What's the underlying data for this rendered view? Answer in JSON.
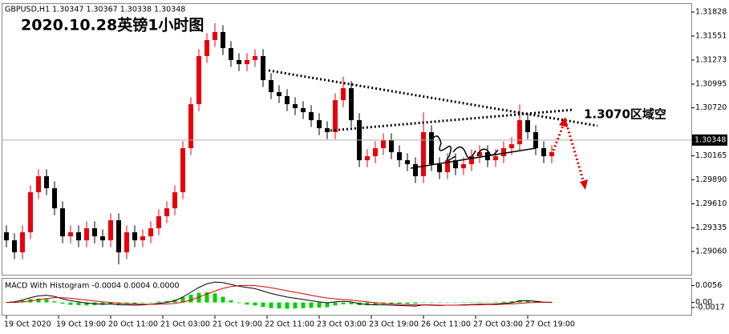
{
  "chart_data": [
    {
      "type": "candlestick",
      "header": "GBPUSD,H1  1.30347 1.30367 1.30338 1.30348",
      "title": "2020.10.28英镑1小时图",
      "annotation": "1.3070区域空",
      "up_color": "#e8000b",
      "down_color": "#000000",
      "open": [
        1.29282,
        1.29189,
        1.2905,
        1.29282,
        1.29745,
        1.2993,
        1.29791,
        1.29559,
        1.29235,
        1.29282,
        1.29189,
        1.29328,
        1.29235,
        1.29189,
        1.29421,
        1.2905,
        1.29282,
        1.29189,
        1.29235,
        1.29328,
        1.29467,
        1.29559,
        1.29745,
        1.30254,
        1.30763,
        1.31319,
        1.31504,
        1.31597,
        1.31411,
        1.31273,
        1.31226,
        1.31273,
        1.31319,
        1.31041,
        1.30902,
        1.30856,
        1.30763,
        1.30717,
        1.30671,
        1.30578,
        1.30485,
        1.30439,
        1.30809,
        1.30948,
        1.30578,
        1.30115,
        1.30161,
        1.30254,
        1.30347,
        1.30208,
        1.30115,
        1.30069,
        1.2993,
        1.30439,
        1.30069,
        1.29976,
        1.30115,
        1.30022,
        1.30069,
        1.30161,
        1.30208,
        1.30115,
        1.30161,
        1.30254,
        1.303,
        1.30578,
        1.30439,
        1.30254,
        1.30161
      ],
      "high": [
        1.29362,
        1.29269,
        1.29362,
        1.29825,
        1.3001,
        1.3001,
        1.29871,
        1.29639,
        1.29362,
        1.29362,
        1.29408,
        1.29408,
        1.29315,
        1.29501,
        1.29501,
        1.29362,
        1.29362,
        1.29315,
        1.29408,
        1.29547,
        1.29639,
        1.29825,
        1.30334,
        1.30843,
        1.31399,
        1.31584,
        1.317,
        1.31677,
        1.31491,
        1.31353,
        1.31353,
        1.31399,
        1.31399,
        1.31121,
        1.30982,
        1.30936,
        1.30843,
        1.30797,
        1.30751,
        1.30658,
        1.30565,
        1.30889,
        1.3108,
        1.31028,
        1.30658,
        1.30241,
        1.30334,
        1.30427,
        1.30427,
        1.30288,
        1.30195,
        1.30149,
        1.3067,
        1.30519,
        1.30149,
        1.30195,
        1.30195,
        1.30149,
        1.30241,
        1.30288,
        1.30288,
        1.30241,
        1.30334,
        1.3038,
        1.3076,
        1.30658,
        1.30519,
        1.30334,
        1.30288
      ],
      "low": [
        1.29109,
        1.2897,
        1.2897,
        1.29202,
        1.29665,
        1.29711,
        1.29479,
        1.29155,
        1.29155,
        1.29109,
        1.29109,
        1.29155,
        1.29109,
        1.29109,
        1.28911,
        1.2897,
        1.29109,
        1.29109,
        1.29155,
        1.29248,
        1.29387,
        1.29479,
        1.29665,
        1.30174,
        1.30683,
        1.31239,
        1.31424,
        1.31331,
        1.31193,
        1.31146,
        1.31146,
        1.31193,
        1.30961,
        1.30822,
        1.30776,
        1.30683,
        1.30637,
        1.30591,
        1.30498,
        1.30405,
        1.30359,
        1.30359,
        1.30729,
        1.30498,
        1.30035,
        1.30035,
        1.30081,
        1.30174,
        1.30128,
        1.30035,
        1.29989,
        1.2985,
        1.2985,
        1.29989,
        1.29896,
        1.29896,
        1.29942,
        1.29942,
        1.29989,
        1.30081,
        1.30035,
        1.30035,
        1.30081,
        1.30174,
        1.3022,
        1.30359,
        1.30174,
        1.30081,
        1.30081
      ],
      "close": [
        1.29189,
        1.2905,
        1.29282,
        1.29745,
        1.2993,
        1.29791,
        1.29559,
        1.29235,
        1.29282,
        1.29189,
        1.29328,
        1.29235,
        1.29189,
        1.29421,
        1.2905,
        1.29282,
        1.29189,
        1.29235,
        1.29328,
        1.29467,
        1.29559,
        1.29745,
        1.30254,
        1.30763,
        1.31319,
        1.31504,
        1.31597,
        1.31411,
        1.31273,
        1.31226,
        1.31273,
        1.31319,
        1.31041,
        1.30902,
        1.30856,
        1.30763,
        1.30717,
        1.30671,
        1.30578,
        1.30485,
        1.30439,
        1.30809,
        1.30948,
        1.30578,
        1.30115,
        1.30161,
        1.30254,
        1.30347,
        1.30208,
        1.30115,
        1.30069,
        1.2993,
        1.30439,
        1.30069,
        1.29976,
        1.30115,
        1.30022,
        1.30069,
        1.30161,
        1.30208,
        1.30115,
        1.30161,
        1.30254,
        1.303,
        1.30578,
        1.30439,
        1.30254,
        1.30161,
        1.30208
      ],
      "current_price": 1.30348,
      "ylim": [
        1.28791,
        1.31921
      ],
      "yticks": [
        1.31828,
        1.31551,
        1.31273,
        1.30995,
        {
          "value": 1.3072,
          "label": "1.30720"
        },
        1.30165,
        {
          "value": 1.2989,
          "label": "1.29890"
        },
        {
          "value": 1.2961,
          "label": "1.29610"
        },
        1.29335,
        {
          "value": 1.2906,
          "label": "1.29060"
        }
      ],
      "xlim": [
        -0.6,
        85.4
      ],
      "xticks": [
        {
          "value": 0,
          "label": "19 Oct 2020"
        },
        {
          "value": 6.5,
          "label": "19 Oct 19:00"
        },
        {
          "value": 13,
          "label": "20 Oct 11:00"
        },
        {
          "value": 19.5,
          "label": "21 Oct 03:00"
        },
        {
          "value": 26,
          "label": "21 Oct 19:00"
        },
        {
          "value": 32.5,
          "label": "22 Oct 11:00"
        },
        {
          "value": 39,
          "label": "23 Oct 03:00"
        },
        {
          "value": 45.5,
          "label": "23 Oct 19:00"
        },
        {
          "value": 52,
          "label": "26 Oct 11:00"
        },
        {
          "value": 58.5,
          "label": "27 Oct 03:00"
        },
        {
          "value": 65,
          "label": "27 Oct 19:00"
        }
      ]
    },
    {
      "type": "macd",
      "title": "MACD With Histogram -0.0004 0.0004 0.0000",
      "ylim": [
        -0.0041,
        0.0079
      ],
      "yticks": [
        0.0056,
        {
          "value": 0,
          "label": "0.00"
        },
        -0.0017
      ],
      "series": [
        {
          "color": "#00d000",
          "style": "histogram",
          "values": [
            0.0,
            0.0002,
            0.0006,
            0.0011,
            0.0013,
            0.0011,
            0.0004,
            -0.0004,
            -0.0008,
            -0.0009,
            -0.001,
            -0.0009,
            -0.0008,
            -0.0005,
            -0.0006,
            -0.0004,
            -0.0004,
            -0.0002,
            0.0,
            0.0003,
            0.0005,
            0.0009,
            0.0017,
            0.0026,
            0.0032,
            0.0034,
            0.003,
            0.0019,
            0.0007,
            -0.0002,
            -0.0007,
            -0.001,
            -0.0015,
            -0.0019,
            -0.002,
            -0.0021,
            -0.002,
            -0.0019,
            -0.0018,
            -0.0017,
            -0.0016,
            -0.001,
            -0.0006,
            -0.0006,
            -0.0009,
            -0.0009,
            -0.0007,
            -0.0005,
            -0.0004,
            -0.0004,
            -0.0004,
            -0.0004,
            0.0,
            -0.0001,
            -0.0001,
            0.0,
            0.0,
            0.0001,
            0.0001,
            0.0002,
            0.0001,
            0.0002,
            0.0003,
            0.0004,
            0.0008,
            0.0007,
            0.0004,
            0.0,
            -0.0001
          ]
        },
        {
          "color": "#000000",
          "style": "line",
          "values": [
            0.0,
            0.0002,
            0.0008,
            0.0016,
            0.0022,
            0.0024,
            0.002,
            0.0012,
            0.0006,
            0.0002,
            -0.0002,
            -0.0004,
            -0.0006,
            -0.0005,
            -0.0008,
            -0.0008,
            -0.0009,
            -0.0008,
            -0.0006,
            -0.0003,
            0.0,
            0.0006,
            0.0018,
            0.0034,
            0.005,
            0.0062,
            0.0068,
            0.0066,
            0.006,
            0.0054,
            0.005,
            0.0046,
            0.0038,
            0.003,
            0.0024,
            0.0018,
            0.0014,
            0.001,
            0.0006,
            0.0002,
            -0.0001,
            0.0002,
            0.0004,
            0.0002,
            -0.0004,
            -0.0007,
            -0.0008,
            -0.0008,
            -0.0009,
            -0.001,
            -0.0011,
            -0.0012,
            -0.0008,
            -0.0009,
            -0.001,
            -0.0009,
            -0.0009,
            -0.0008,
            -0.0007,
            -0.0006,
            -0.0006,
            -0.0005,
            -0.0003,
            -0.0001,
            0.0005,
            0.0006,
            0.0004,
            0.0001,
            0.0
          ]
        },
        {
          "color": "#e00000",
          "style": "line",
          "values": [
            0.0,
            0.0,
            0.0002,
            0.0005,
            0.0009,
            0.0013,
            0.0016,
            0.0016,
            0.0014,
            0.0011,
            0.0008,
            0.0005,
            0.0002,
            0.0,
            -0.0002,
            -0.0004,
            -0.0005,
            -0.0006,
            -0.0006,
            -0.0006,
            -0.0005,
            -0.0003,
            0.0001,
            0.0008,
            0.0018,
            0.0028,
            0.0038,
            0.0047,
            0.0053,
            0.0056,
            0.0057,
            0.0056,
            0.0053,
            0.0049,
            0.0044,
            0.0039,
            0.0034,
            0.0029,
            0.0024,
            0.0019,
            0.0015,
            0.0012,
            0.001,
            0.0008,
            0.0005,
            0.0002,
            -0.0001,
            -0.0003,
            -0.0005,
            -0.0006,
            -0.0007,
            -0.0008,
            -0.0008,
            -0.0008,
            -0.0009,
            -0.0009,
            -0.0009,
            -0.0009,
            -0.0008,
            -0.0008,
            -0.0007,
            -0.0007,
            -0.0006,
            -0.0005,
            -0.0003,
            -0.0001,
            0.0,
            0.0001,
            0.0001
          ]
        }
      ]
    }
  ]
}
